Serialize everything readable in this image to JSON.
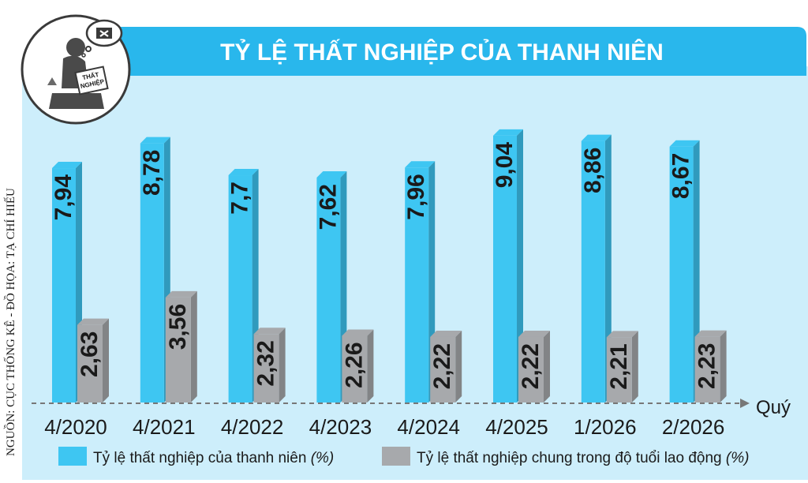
{
  "title": "TỶ LỆ THẤT NGHIỆP CỦA THANH NIÊN",
  "source": "NGUỒN: CỤC THỐNG KÊ - ĐỒ HỌA: TẠ CHÍ HIẾU",
  "illustration": {
    "sign_line1": "THẤT",
    "sign_line2": "NGHIỆP"
  },
  "colors": {
    "youth": "#3ec6f2",
    "general": "#a7a9ac",
    "title_bar": "#29b7ec",
    "background": "#cdeefb"
  },
  "chart_data": {
    "type": "bar",
    "x_axis_name": "Quý",
    "categories": [
      "4/2020",
      "4/2021",
      "4/2022",
      "4/2023",
      "4/2024",
      "4/2025",
      "1/2026",
      "2/2026"
    ],
    "ylim": [
      0,
      10
    ],
    "grid": false,
    "legend_position": "bottom",
    "series": [
      {
        "name": "Tỷ lệ thất nghiệp của thanh niên",
        "unit": "(%)",
        "values": [
          7.94,
          8.78,
          7.7,
          7.62,
          7.96,
          9.04,
          8.86,
          8.67
        ],
        "labels": [
          "7,94",
          "8,78",
          "7,7",
          "7,62",
          "7,96",
          "9,04",
          "8,86",
          "8,67"
        ]
      },
      {
        "name": "Tỷ lệ thất nghiệp chung trong độ tuổi lao động",
        "unit": "(%)",
        "values": [
          2.63,
          3.56,
          2.32,
          2.26,
          2.22,
          2.22,
          2.21,
          2.23
        ],
        "labels": [
          "2,63",
          "3,56",
          "2,32",
          "2,26",
          "2,22",
          "2,22",
          "2,21",
          "2,23"
        ]
      }
    ]
  }
}
